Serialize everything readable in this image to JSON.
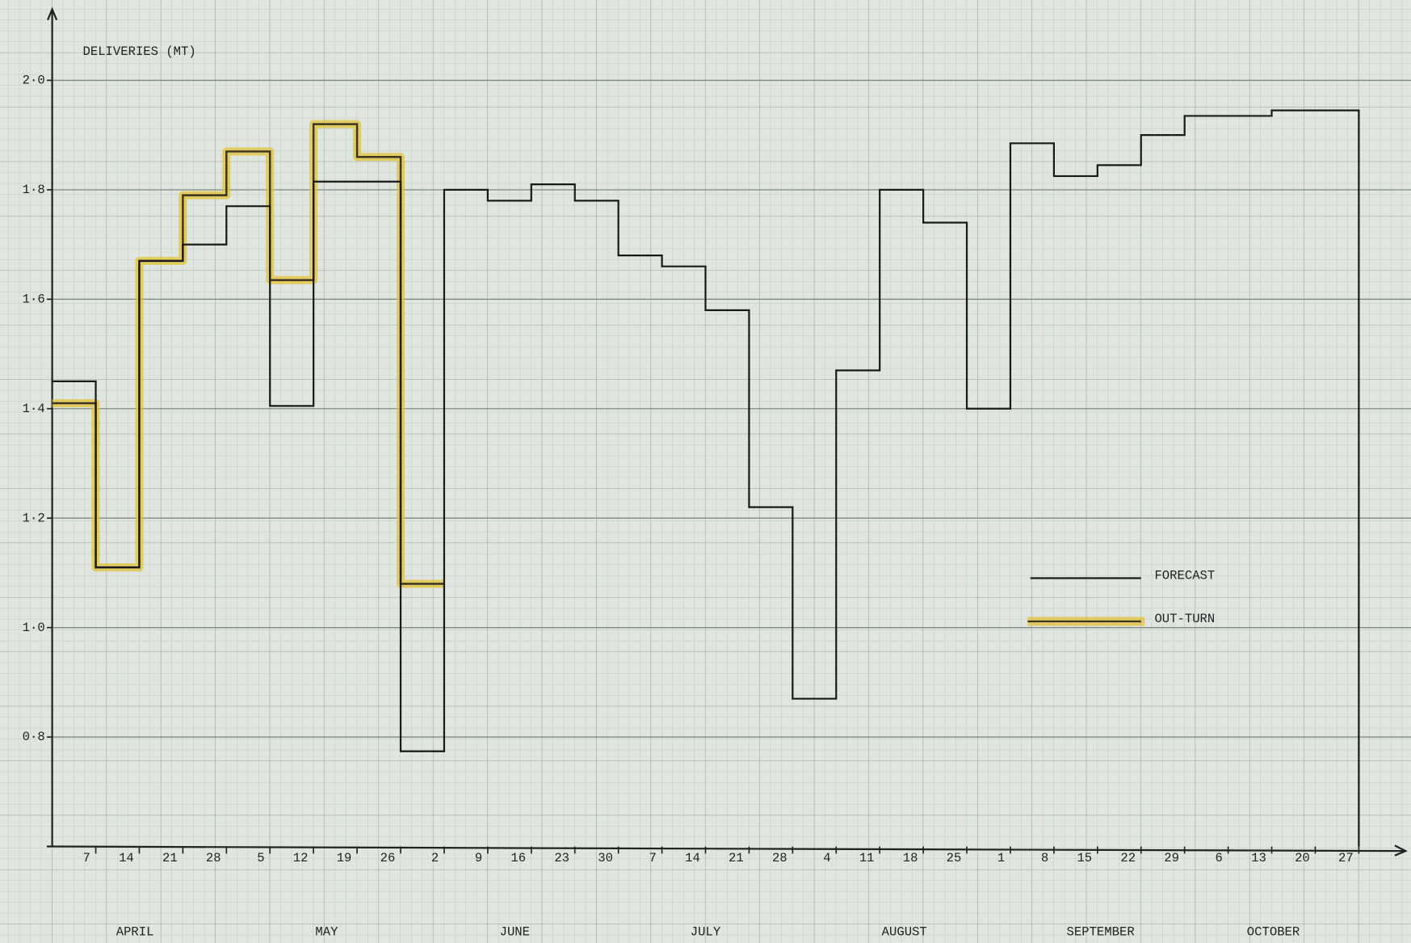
{
  "chart_data": {
    "type": "step",
    "title": "DELIVERIES (MT)",
    "categories": [
      "7",
      "14",
      "21",
      "28",
      "5",
      "12",
      "19",
      "26",
      "2",
      "9",
      "16",
      "23",
      "30",
      "7",
      "14",
      "21",
      "28",
      "4",
      "11",
      "18",
      "25",
      "1",
      "8",
      "15",
      "22",
      "29",
      "6",
      "13",
      "20",
      "27"
    ],
    "months": [
      "APRIL",
      "MAY",
      "JUNE",
      "JULY",
      "AUGUST",
      "SEPTEMBER",
      "OCTOBER"
    ],
    "series": [
      {
        "name": "FORECAST",
        "color": "#1a1a1a",
        "values": [
          1.45,
          1.11,
          1.67,
          1.7,
          1.77,
          1.405,
          1.815,
          1.815,
          0.774,
          1.8,
          1.78,
          1.81,
          1.78,
          1.68,
          1.66,
          1.58,
          1.22,
          0.87,
          1.47,
          1.8,
          1.74,
          1.4,
          1.885,
          1.825,
          1.845,
          1.9,
          1.935,
          1.935,
          1.945,
          1.945
        ]
      },
      {
        "name": "OUT-TURN",
        "color": "#e3c23a",
        "values": [
          1.41,
          1.11,
          1.67,
          1.79,
          1.87,
          1.635,
          1.92,
          1.86,
          1.08,
          null,
          null,
          null,
          null,
          null,
          null,
          null,
          null,
          null,
          null,
          null,
          null,
          null,
          null,
          null,
          null,
          null,
          null,
          null,
          null,
          null
        ]
      }
    ],
    "ylim": [
      0.6,
      2.13
    ],
    "yticks": [
      {
        "value": 0.8,
        "label": "0·8"
      },
      {
        "value": 1.0,
        "label": "1·0"
      },
      {
        "value": 1.2,
        "label": "1·2"
      },
      {
        "value": 1.4,
        "label": "1·4"
      },
      {
        "value": 1.6,
        "label": "1·6"
      },
      {
        "value": 1.8,
        "label": "1·8"
      },
      {
        "value": 2.0,
        "label": "2·0"
      }
    ],
    "grid": true
  }
}
